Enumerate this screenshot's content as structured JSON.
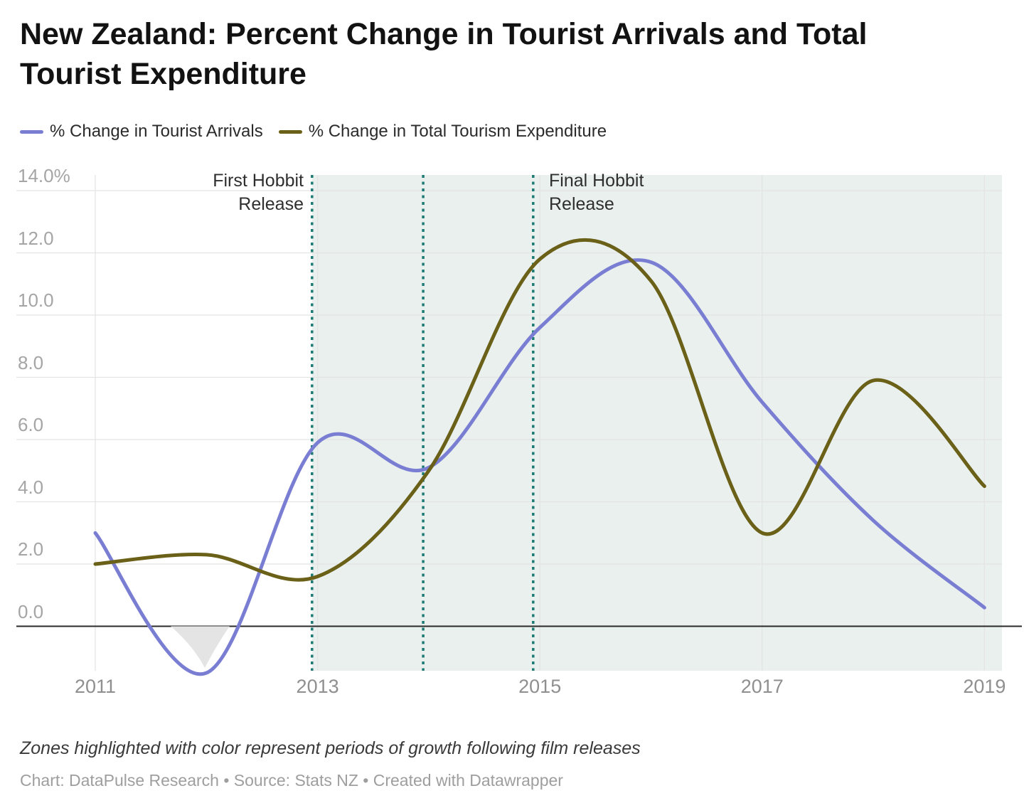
{
  "title_lines": [
    "New Zealand: Percent Change in Tourist Arrivals and Total",
    "Tourist Expenditure"
  ],
  "legend": {
    "items": [
      {
        "label": "% Change in Tourist Arrivals",
        "color": "#7a7ed3"
      },
      {
        "label": "% Change in Total Tourism Expenditure",
        "color": "#6a6018"
      }
    ]
  },
  "annotations": {
    "first_release": {
      "lines": [
        "First Hobbit",
        "Release"
      ]
    },
    "final_release": {
      "lines": [
        "Final Hobbit",
        "Release"
      ]
    }
  },
  "footnote": "Zones highlighted with color represent periods of growth following film releases",
  "credit": "Chart: DataPulse Research • Source: Stats NZ • Created with Datawrapper",
  "chart_data": {
    "type": "line",
    "title": "New Zealand: Percent Change in Tourist Arrivals and Total Tourist Expenditure",
    "x": [
      2011,
      2012,
      2013,
      2014,
      2015,
      2016,
      2017,
      2018,
      2019
    ],
    "series": [
      {
        "name": "% Change in Tourist Arrivals",
        "color": "#7a7ed3",
        "values": [
          3.0,
          -1.5,
          5.9,
          5.1,
          9.6,
          11.7,
          7.2,
          3.4,
          0.6
        ]
      },
      {
        "name": "% Change in Total Tourism Expenditure",
        "color": "#6a6018",
        "values": [
          2.0,
          2.3,
          1.6,
          5.0,
          11.8,
          11.1,
          3.0,
          7.9,
          4.5
        ]
      }
    ],
    "y_ticks": {
      "values": [
        0,
        2,
        4,
        6,
        8,
        10,
        12,
        14
      ],
      "labels": [
        "0.0",
        "2.0",
        "4.0",
        "6.0",
        "8.0",
        "10.0",
        "12.0",
        "14.0%"
      ]
    },
    "x_ticks": {
      "values": [
        2011,
        2013,
        2015,
        2017,
        2019
      ],
      "labels": [
        "2011",
        "2013",
        "2015",
        "2017",
        "2019"
      ]
    },
    "ylim": [
      -1.45,
      14.5
    ],
    "xlim": [
      2011,
      2019.16
    ],
    "grid": true,
    "legend_position": "top",
    "zero_line": true,
    "colors": {
      "grid": "#e4e4e4",
      "zero_line": "#2a2a2a",
      "highlight_zone": "#e9f0ee",
      "release_line": "#1e7a74",
      "negative_dip_shade": "#e4e4e4"
    },
    "highlight_zone": {
      "from_year": 2012.95,
      "to_year": 2019.16
    },
    "release_lines": {
      "years": [
        2012.95,
        2013.95,
        2014.94
      ],
      "style": "dotted"
    }
  }
}
